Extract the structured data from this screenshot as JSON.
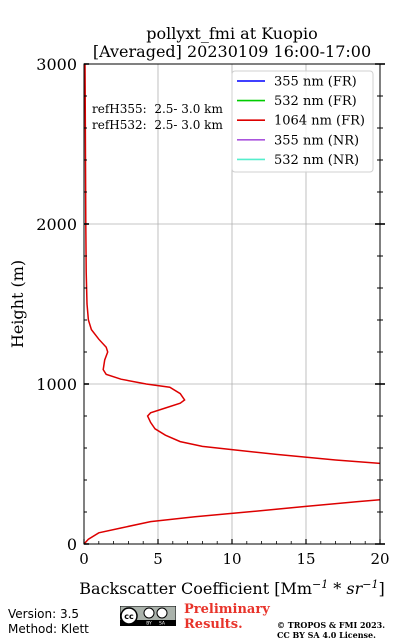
{
  "chart_data": {
    "type": "line",
    "title": [
      "pollyxt_fmi at Kuopio",
      "[Averaged] 20230109 16:00-17:00"
    ],
    "xlabel": "Backscatter Coefficient [Mm^-1 * sr^-1]",
    "ylabel": "Height (m)",
    "xlim": [
      0,
      20
    ],
    "ylim": [
      0,
      3000
    ],
    "xticks": [
      "0",
      "5",
      "10",
      "15",
      "20"
    ],
    "yticks": [
      "0",
      "1000",
      "2000",
      "3000"
    ],
    "grid": true,
    "legend_placement": "top-right",
    "annotations": [
      "refH355:  2.5- 3.0 km",
      "refH532:  2.5- 3.0 km"
    ],
    "series": [
      {
        "name": "355 nm (FR)",
        "color": "#0000ff",
        "points": []
      },
      {
        "name": "532 nm (FR)",
        "color": "#00cc00",
        "points": []
      },
      {
        "name": "1064 nm (FR)",
        "color": "#dd0000",
        "points": [
          [
            0.0,
            0
          ],
          [
            0.3,
            30
          ],
          [
            1.0,
            70
          ],
          [
            2.5,
            100
          ],
          [
            4.5,
            140
          ],
          [
            7.5,
            170
          ],
          [
            11.0,
            200
          ],
          [
            15.0,
            235
          ],
          [
            18.5,
            265
          ],
          [
            20.5,
            280
          ],
          [
            20.5,
            500
          ],
          [
            17.0,
            525
          ],
          [
            13.0,
            560
          ],
          [
            10.0,
            590
          ],
          [
            8.0,
            610
          ],
          [
            6.5,
            640
          ],
          [
            5.5,
            680
          ],
          [
            4.8,
            720
          ],
          [
            4.5,
            760
          ],
          [
            4.3,
            800
          ],
          [
            4.5,
            820
          ],
          [
            5.5,
            850
          ],
          [
            6.5,
            880
          ],
          [
            6.8,
            900
          ],
          [
            6.5,
            940
          ],
          [
            5.8,
            980
          ],
          [
            4.2,
            1000
          ],
          [
            2.5,
            1030
          ],
          [
            1.5,
            1060
          ],
          [
            1.3,
            1090
          ],
          [
            1.4,
            1150
          ],
          [
            1.6,
            1200
          ],
          [
            1.5,
            1230
          ],
          [
            1.0,
            1280
          ],
          [
            0.5,
            1340
          ],
          [
            0.3,
            1400
          ],
          [
            0.2,
            1500
          ],
          [
            0.15,
            1700
          ],
          [
            0.12,
            2000
          ],
          [
            0.1,
            2400
          ],
          [
            0.08,
            2800
          ],
          [
            0.07,
            3000
          ]
        ]
      },
      {
        "name": "355 nm (NR)",
        "color": "#aa55dd",
        "points": []
      },
      {
        "name": "532 nm (NR)",
        "color": "#55eecc",
        "points": []
      }
    ]
  },
  "footer": {
    "version": "Version: 3.5",
    "method": "Method: Klett",
    "preliminary": [
      "Preliminary",
      "Results."
    ],
    "preliminary_color": "#e8332a",
    "copyright": [
      "© TROPOS & FMI 2023.",
      "CC BY SA 4.0 License."
    ],
    "license_icon": "cc-by-sa-icon"
  }
}
